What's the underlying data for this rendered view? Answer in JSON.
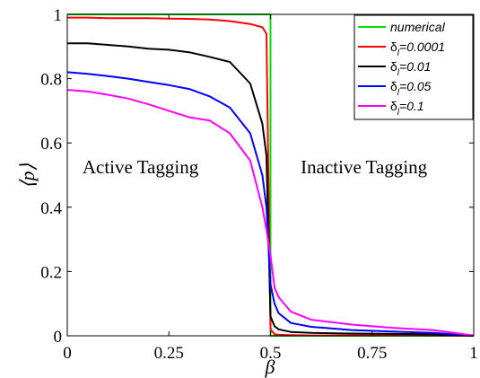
{
  "chart_data": {
    "type": "line",
    "xlabel": "β",
    "ylabel": "⟨p⟩",
    "xlim": [
      0,
      1
    ],
    "ylim": [
      0,
      1
    ],
    "xticks": [
      {
        "value": 0,
        "label": "0"
      },
      {
        "value": 0.25,
        "label": "0.25"
      },
      {
        "value": 0.5,
        "label": "0.5"
      },
      {
        "value": 0.75,
        "label": "0.75"
      },
      {
        "value": 1,
        "label": "1"
      }
    ],
    "yticks": [
      {
        "value": 0,
        "label": "0"
      },
      {
        "value": 0.2,
        "label": "0.2"
      },
      {
        "value": 0.4,
        "label": "0.4"
      },
      {
        "value": 0.6,
        "label": "0.6"
      },
      {
        "value": 0.8,
        "label": "0.8"
      },
      {
        "value": 1,
        "label": "1"
      }
    ],
    "grid": false,
    "legend_position": "top-right",
    "annotations": [
      {
        "text": "Active Tagging",
        "x": 0.18,
        "y": 0.45
      },
      {
        "text": "Inactive Tagging",
        "x": 0.73,
        "y": 0.45
      }
    ],
    "series": [
      {
        "name": "numerical",
        "legend_main": "numerical",
        "legend_sub": "",
        "legend_tail": "",
        "color": "#00e000",
        "x": [
          0,
          0.5,
          0.5,
          0.505,
          1
        ],
        "y": [
          1,
          1,
          0,
          0,
          0
        ]
      },
      {
        "name": "δl=0.0001",
        "legend_main": "δ",
        "legend_sub": "l",
        "legend_tail": "=0.0001",
        "color": "#ff0000",
        "x": [
          0,
          0.05,
          0.1,
          0.15,
          0.2,
          0.25,
          0.3,
          0.35,
          0.4,
          0.45,
          0.48,
          0.49,
          0.5,
          0.51,
          0.52,
          0.55,
          0.6,
          0.7,
          0.8,
          0.9,
          1
        ],
        "y": [
          0.99,
          0.99,
          0.988,
          0.988,
          0.988,
          0.987,
          0.986,
          0.984,
          0.979,
          0.97,
          0.96,
          0.94,
          0.02,
          0.005,
          0.003,
          0.002,
          0.001,
          0.001,
          0.001,
          0.001,
          0
        ]
      },
      {
        "name": "δl=0.01",
        "legend_main": "δ",
        "legend_sub": "l",
        "legend_tail": "=0.01",
        "color": "#000000",
        "x": [
          0,
          0.05,
          0.1,
          0.15,
          0.2,
          0.25,
          0.3,
          0.35,
          0.4,
          0.45,
          0.48,
          0.49,
          0.5,
          0.51,
          0.52,
          0.55,
          0.6,
          0.7,
          0.8,
          0.9,
          1
        ],
        "y": [
          0.91,
          0.91,
          0.905,
          0.9,
          0.893,
          0.89,
          0.882,
          0.868,
          0.852,
          0.785,
          0.66,
          0.56,
          0.06,
          0.03,
          0.02,
          0.012,
          0.009,
          0.007,
          0.006,
          0.005,
          0
        ]
      },
      {
        "name": "δl=0.05",
        "legend_main": "δ",
        "legend_sub": "l",
        "legend_tail": "=0.05",
        "color": "#0000ff",
        "x": [
          0,
          0.05,
          0.1,
          0.15,
          0.2,
          0.25,
          0.3,
          0.35,
          0.4,
          0.45,
          0.48,
          0.49,
          0.5,
          0.51,
          0.52,
          0.55,
          0.6,
          0.7,
          0.8,
          0.9,
          1
        ],
        "y": [
          0.82,
          0.815,
          0.808,
          0.8,
          0.79,
          0.78,
          0.768,
          0.745,
          0.71,
          0.63,
          0.5,
          0.4,
          0.16,
          0.1,
          0.07,
          0.04,
          0.028,
          0.018,
          0.013,
          0.009,
          0
        ]
      },
      {
        "name": "δl=0.1",
        "legend_main": "δ",
        "legend_sub": "l",
        "legend_tail": "=0.1",
        "color": "#ff00ff",
        "x": [
          0,
          0.05,
          0.1,
          0.15,
          0.2,
          0.25,
          0.3,
          0.35,
          0.4,
          0.45,
          0.48,
          0.49,
          0.5,
          0.51,
          0.52,
          0.55,
          0.6,
          0.7,
          0.8,
          0.9,
          1
        ],
        "y": [
          0.765,
          0.76,
          0.75,
          0.738,
          0.72,
          0.7,
          0.68,
          0.67,
          0.63,
          0.545,
          0.4,
          0.33,
          0.25,
          0.15,
          0.12,
          0.075,
          0.05,
          0.035,
          0.025,
          0.018,
          0.001
        ]
      }
    ]
  }
}
